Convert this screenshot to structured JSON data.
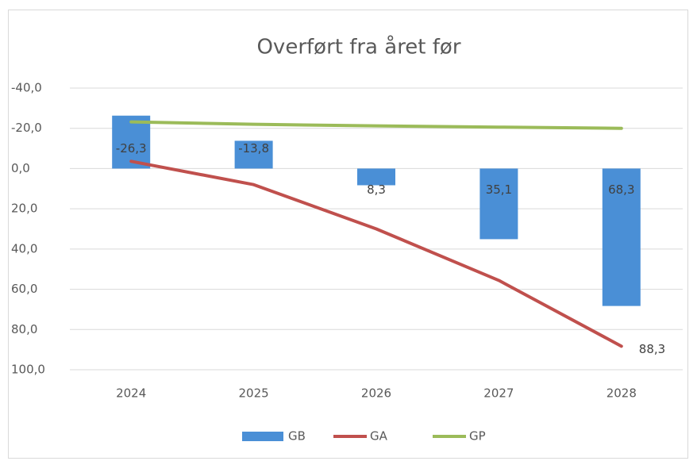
{
  "chart_data": {
    "type": "bar_line",
    "title": "Overført fra året før",
    "categories": [
      "2024",
      "2025",
      "2026",
      "2027",
      "2028"
    ],
    "series": [
      {
        "name": "GB",
        "type": "bar",
        "color": "#4a8fd6",
        "values": [
          -26.3,
          -13.8,
          8.3,
          35.1,
          68.3
        ],
        "value_labels": [
          "-26,3",
          "-13,8",
          "8,3",
          "35,1",
          "68,3"
        ]
      },
      {
        "name": "GA",
        "type": "line",
        "color": "#c0504d",
        "values": [
          -3.6,
          8,
          30,
          55.6,
          88.3
        ],
        "value_labels": [
          null,
          null,
          null,
          null,
          "88,3"
        ]
      },
      {
        "name": "GP",
        "type": "line",
        "color": "#9bbb59",
        "values": [
          -23.2,
          -22,
          -21.2,
          -20.6,
          -20
        ]
      }
    ],
    "ylim": [
      -40,
      100
    ],
    "y_reversed": true,
    "yticks": [
      {
        "value": -40,
        "label": "-40,0"
      },
      {
        "value": -20,
        "label": "-20,0"
      },
      {
        "value": 0,
        "label": "0,0"
      },
      {
        "value": 20,
        "label": "20,0"
      },
      {
        "value": 40,
        "label": "40,0"
      },
      {
        "value": 60,
        "label": "60,0"
      },
      {
        "value": 80,
        "label": "80,0"
      },
      {
        "value": 100,
        "label": "100,0"
      }
    ],
    "grid": true,
    "legend": "bottom"
  }
}
